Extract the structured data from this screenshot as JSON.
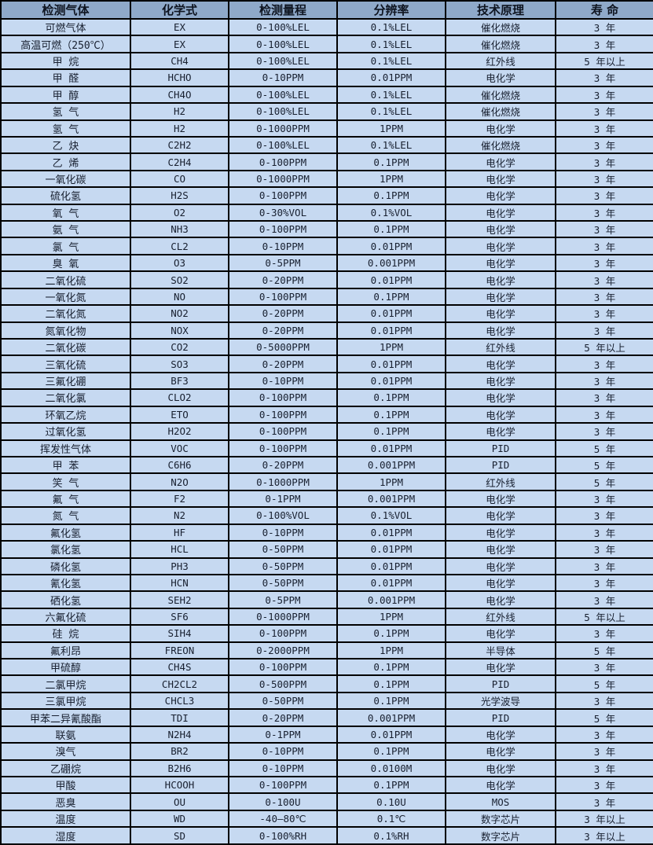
{
  "colors": {
    "header_bg": "#8fa9c9",
    "row_bg": "#c6d9f1",
    "border": "#000000",
    "text": "#182030"
  },
  "table": {
    "columns": [
      "检测气体",
      "化学式",
      "检测量程",
      "分辨率",
      "技术原理",
      "寿 命"
    ],
    "rows": [
      [
        "可燃气体",
        "EX",
        "0-100%LEL",
        "0.1%LEL",
        "催化燃烧",
        "3 年"
      ],
      [
        "高温可燃（250℃）",
        "EX",
        "0-100%LEL",
        "0.1%LEL",
        "催化燃烧",
        "3 年"
      ],
      [
        "甲 烷",
        "CH4",
        "0-100%LEL",
        "0.1%LEL",
        "红外线",
        "5 年以上"
      ],
      [
        "甲 醛",
        "HCHO",
        "0-10PPM",
        "0.01PPM",
        "电化学",
        "3 年"
      ],
      [
        "甲 醇",
        "CH4O",
        "0-100%LEL",
        "0.1%LEL",
        "催化燃烧",
        "3 年"
      ],
      [
        "氢 气",
        "H2",
        "0-100%LEL",
        "0.1%LEL",
        "催化燃烧",
        "3 年"
      ],
      [
        "氢 气",
        "H2",
        "0-1000PPM",
        "1PPM",
        "电化学",
        "3 年"
      ],
      [
        "乙 炔",
        "C2H2",
        "0-100%LEL",
        "0.1%LEL",
        "催化燃烧",
        "3 年"
      ],
      [
        "乙 烯",
        "C2H4",
        "0-100PPM",
        "0.1PPM",
        "电化学",
        "3 年"
      ],
      [
        "一氧化碳",
        "CO",
        "0-1000PPM",
        "1PPM",
        "电化学",
        "3 年"
      ],
      [
        "硫化氢",
        "H2S",
        "0-100PPM",
        "0.1PPM",
        "电化学",
        "3 年"
      ],
      [
        "氧 气",
        "O2",
        "0-30%VOL",
        "0.1%VOL",
        "电化学",
        "3 年"
      ],
      [
        "氨 气",
        "NH3",
        "0-100PPM",
        "0.1PPM",
        "电化学",
        "3 年"
      ],
      [
        "氯 气",
        "CL2",
        "0-10PPM",
        "0.01PPM",
        "电化学",
        "3 年"
      ],
      [
        "臭 氧",
        "O3",
        "0-5PPM",
        "0.001PPM",
        "电化学",
        "3 年"
      ],
      [
        "二氧化硫",
        "SO2",
        "0-20PPM",
        "0.01PPM",
        "电化学",
        "3 年"
      ],
      [
        "一氧化氮",
        "NO",
        "0-100PPM",
        "0.1PPM",
        "电化学",
        "3 年"
      ],
      [
        "二氧化氮",
        "NO2",
        "0-20PPM",
        "0.01PPM",
        "电化学",
        "3 年"
      ],
      [
        "氮氧化物",
        "NOX",
        "0-20PPM",
        "0.01PPM",
        "电化学",
        "3 年"
      ],
      [
        "二氧化碳",
        "CO2",
        "0-5000PPM",
        "1PPM",
        "红外线",
        "5 年以上"
      ],
      [
        "三氧化硫",
        "SO3",
        "0-20PPM",
        "0.01PPM",
        "电化学",
        "3 年"
      ],
      [
        "三氟化硼",
        "BF3",
        "0-10PPM",
        "0.01PPM",
        "电化学",
        "3 年"
      ],
      [
        "二氧化氯",
        "CLO2",
        "0-100PPM",
        "0.1PPM",
        "电化学",
        "3 年"
      ],
      [
        "环氧乙烷",
        "ETO",
        "0-100PPM",
        "0.1PPM",
        "电化学",
        "3 年"
      ],
      [
        "过氧化氢",
        "H2O2",
        "0-100PPM",
        "0.1PPM",
        "电化学",
        "3 年"
      ],
      [
        "挥发性气体",
        "VOC",
        "0-100PPM",
        "0.01PPM",
        "PID",
        "5 年"
      ],
      [
        "甲 苯",
        "C6H6",
        "0-20PPM",
        "0.001PPM",
        "PID",
        "5 年"
      ],
      [
        "笑 气",
        "N2O",
        "0-1000PPM",
        "1PPM",
        "红外线",
        "5 年"
      ],
      [
        "氟 气",
        "F2",
        "0-1PPM",
        "0.001PPM",
        "电化学",
        "3 年"
      ],
      [
        "氮 气",
        "N2",
        "0-100%VOL",
        "0.1%VOL",
        "电化学",
        "3 年"
      ],
      [
        "氟化氢",
        "HF",
        "0-10PPM",
        "0.01PPM",
        "电化学",
        "3 年"
      ],
      [
        "氯化氢",
        "HCL",
        "0-50PPM",
        "0.01PPM",
        "电化学",
        "3 年"
      ],
      [
        "磷化氢",
        "PH3",
        "0-50PPM",
        "0.01PPM",
        "电化学",
        "3 年"
      ],
      [
        "氰化氢",
        "HCN",
        "0-50PPM",
        "0.01PPM",
        "电化学",
        "3 年"
      ],
      [
        "硒化氢",
        "SEH2",
        "0-5PPM",
        "0.001PPM",
        "电化学",
        "3 年"
      ],
      [
        "六氟化硫",
        "SF6",
        "0-1000PPM",
        "1PPM",
        "红外线",
        "5 年以上"
      ],
      [
        "硅 烷",
        "SIH4",
        "0-100PPM",
        "0.1PPM",
        "电化学",
        "3 年"
      ],
      [
        "氟利昂",
        "FREON",
        "0-2000PPM",
        "1PPM",
        "半导体",
        "5 年"
      ],
      [
        "甲硫醇",
        "CH4S",
        "0-100PPM",
        "0.1PPM",
        "电化学",
        "3 年"
      ],
      [
        "二氯甲烷",
        "CH2CL2",
        "0-500PPM",
        "0.1PPM",
        "PID",
        "5 年"
      ],
      [
        "三氯甲烷",
        "CHCL3",
        "0-50PPM",
        "0.1PPM",
        "光学波导",
        "3 年"
      ],
      [
        "甲苯二异氰酸酯",
        "TDI",
        "0-20PPM",
        "0.001PPM",
        "PID",
        "5 年"
      ],
      [
        "联氨",
        "N2H4",
        "0-1PPM",
        "0.01PPM",
        "电化学",
        "3 年"
      ],
      [
        "溴气",
        "BR2",
        "0-10PPM",
        "0.1PPM",
        "电化学",
        "3 年"
      ],
      [
        "乙硼烷",
        "B2H6",
        "0-10PPM",
        "0.0100M",
        "电化学",
        "3 年"
      ],
      [
        "甲酸",
        "HCOOH",
        "0-100PPM",
        "0.1PPM",
        "电化学",
        "3 年"
      ],
      [
        "恶臭",
        "OU",
        "0-100U",
        "0.10U",
        "MOS",
        "3 年"
      ],
      [
        "温度",
        "WD",
        "-40—80℃",
        "0.1℃",
        "数字芯片",
        "3 年以上"
      ],
      [
        "湿度",
        "SD",
        "0-100%RH",
        "0.1%RH",
        "数字芯片",
        "3 年以上"
      ]
    ]
  }
}
